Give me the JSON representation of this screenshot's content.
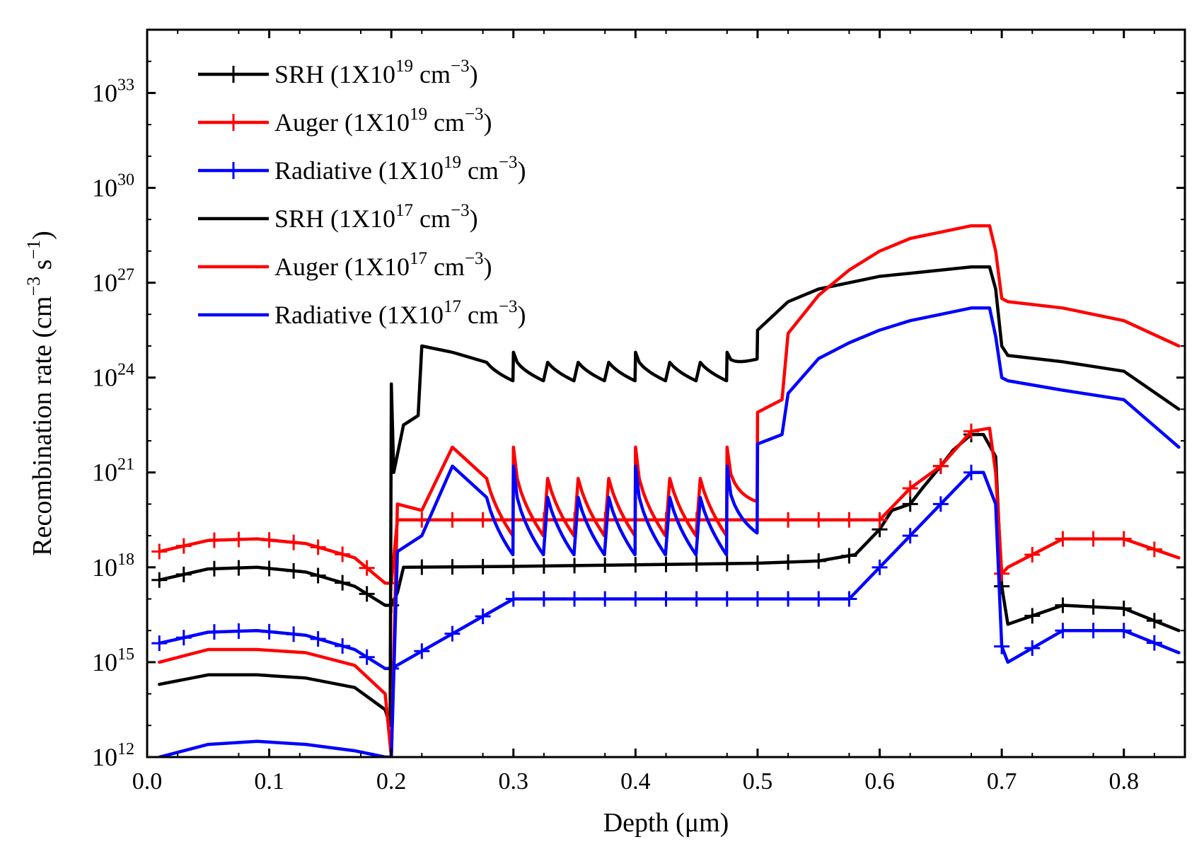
{
  "chart_data": {
    "type": "line",
    "title": "",
    "xlabel": "Depth (μm)",
    "ylabel_parts": [
      "Recombination rate (cm",
      "−3",
      " s",
      "−1",
      ")"
    ],
    "xlim": [
      0.0,
      0.85
    ],
    "ylim_log10": [
      12,
      35
    ],
    "x_ticks": [
      0.0,
      0.1,
      0.2,
      0.3,
      0.4,
      0.5,
      0.6,
      0.7,
      0.8
    ],
    "x_tick_labels": [
      "0.0",
      "0.1",
      "0.2",
      "0.3",
      "0.4",
      "0.5",
      "0.6",
      "0.7",
      "0.8"
    ],
    "y_ticks": [
      12,
      15,
      18,
      21,
      24,
      27,
      30,
      33
    ],
    "y_tick_base": "10",
    "y_tick_exps": [
      "12",
      "15",
      "18",
      "21",
      "24",
      "27",
      "30",
      "33"
    ],
    "legend_position": "top-left",
    "series": [
      {
        "name": "SRH (1X10^19 cm^-3)",
        "legend": {
          "pre": "SRH (1X10",
          "sup1": "19",
          "mid": " cm",
          "sup2": "−3",
          "post": ")"
        },
        "color": "#000000",
        "marker": "plus",
        "x": [
          0.01,
          0.05,
          0.09,
          0.13,
          0.17,
          0.195,
          0.2,
          0.205,
          0.21,
          0.3,
          0.4,
          0.5,
          0.55,
          0.58,
          0.6,
          0.61,
          0.625,
          0.635,
          0.65,
          0.66,
          0.675,
          0.685,
          0.695,
          0.7,
          0.705,
          0.75,
          0.8,
          0.845
        ],
        "log10_values": [
          17.6,
          17.95,
          18.0,
          17.85,
          17.4,
          16.8,
          16.8,
          17.2,
          18.0,
          18.03,
          18.08,
          18.13,
          18.2,
          18.4,
          19.2,
          19.8,
          20.0,
          20.5,
          21.2,
          21.7,
          22.2,
          22.2,
          21.5,
          17.4,
          16.2,
          16.8,
          16.7,
          16.0
        ],
        "marker_x": [
          0.01,
          0.03,
          0.055,
          0.075,
          0.1,
          0.12,
          0.14,
          0.16,
          0.18,
          0.2,
          0.225,
          0.25,
          0.275,
          0.3,
          0.325,
          0.35,
          0.375,
          0.4,
          0.425,
          0.45,
          0.475,
          0.5,
          0.525,
          0.55,
          0.575,
          0.6,
          0.625,
          0.65,
          0.675,
          0.7,
          0.725,
          0.75,
          0.775,
          0.8,
          0.825
        ]
      },
      {
        "name": "Auger (1X10^19 cm^-3)",
        "legend": {
          "pre": "Auger (1X10",
          "sup1": "19",
          "mid": " cm",
          "sup2": "−3",
          "post": ")"
        },
        "color": "#ff0000",
        "marker": "plus",
        "x": [
          0.01,
          0.05,
          0.09,
          0.13,
          0.17,
          0.195,
          0.2,
          0.205,
          0.3,
          0.4,
          0.5,
          0.55,
          0.575,
          0.6,
          0.625,
          0.65,
          0.675,
          0.69,
          0.695,
          0.7,
          0.705,
          0.75,
          0.8,
          0.845
        ],
        "log10_values": [
          18.5,
          18.85,
          18.9,
          18.75,
          18.3,
          17.5,
          17.5,
          19.5,
          19.5,
          19.5,
          19.5,
          19.5,
          19.5,
          19.5,
          20.5,
          21.2,
          22.3,
          22.4,
          21.0,
          17.8,
          18.0,
          18.9,
          18.9,
          18.3
        ],
        "marker_x": [
          0.01,
          0.03,
          0.055,
          0.075,
          0.1,
          0.12,
          0.14,
          0.16,
          0.18,
          0.2,
          0.225,
          0.25,
          0.275,
          0.3,
          0.325,
          0.35,
          0.375,
          0.4,
          0.425,
          0.45,
          0.475,
          0.5,
          0.525,
          0.55,
          0.575,
          0.6,
          0.625,
          0.65,
          0.675,
          0.7,
          0.725,
          0.75,
          0.775,
          0.8,
          0.825
        ]
      },
      {
        "name": "Radiative (1X10^19 cm^-3)",
        "legend": {
          "pre": "Radiative (1X10",
          "sup1": "19",
          "mid": " cm",
          "sup2": "−3",
          "post": ")"
        },
        "color": "#0000ff",
        "marker": "plus",
        "x": [
          0.01,
          0.05,
          0.09,
          0.13,
          0.17,
          0.195,
          0.2,
          0.3,
          0.4,
          0.5,
          0.575,
          0.6,
          0.625,
          0.65,
          0.675,
          0.685,
          0.695,
          0.7,
          0.705,
          0.75,
          0.8,
          0.845
        ],
        "log10_values": [
          15.6,
          15.95,
          16.0,
          15.85,
          15.4,
          14.8,
          14.8,
          17.0,
          17.0,
          17.0,
          17.0,
          18.0,
          19.0,
          20.0,
          21.0,
          21.0,
          20.0,
          15.5,
          15.0,
          16.0,
          16.0,
          15.3
        ],
        "marker_x": [
          0.01,
          0.03,
          0.055,
          0.075,
          0.1,
          0.12,
          0.14,
          0.16,
          0.18,
          0.2,
          0.225,
          0.25,
          0.275,
          0.3,
          0.325,
          0.35,
          0.375,
          0.4,
          0.425,
          0.45,
          0.475,
          0.5,
          0.525,
          0.55,
          0.575,
          0.6,
          0.625,
          0.65,
          0.675,
          0.7,
          0.725,
          0.75,
          0.775,
          0.8,
          0.825
        ]
      },
      {
        "name": "SRH (1X10^17 cm^-3)",
        "legend": {
          "pre": "SRH (1X10",
          "sup1": "17",
          "mid": " cm",
          "sup2": "−3",
          "post": ")"
        },
        "color": "#000000",
        "marker": "none",
        "x": [
          0.01,
          0.05,
          0.09,
          0.13,
          0.17,
          0.195,
          0.199,
          0.2,
          0.202,
          0.21,
          0.222,
          0.225,
          0.25,
          0.3,
          0.4,
          0.475,
          0.5,
          0.525,
          0.55,
          0.575,
          0.6,
          0.625,
          0.65,
          0.675,
          0.69,
          0.695,
          0.7,
          0.705,
          0.75,
          0.8,
          0.845
        ],
        "log10_values": [
          14.3,
          14.6,
          14.6,
          14.5,
          14.2,
          13.5,
          13.0,
          23.8,
          21.0,
          22.5,
          22.8,
          25.0,
          24.8,
          24.8,
          24.8,
          24.8,
          25.5,
          26.4,
          26.8,
          27.0,
          27.2,
          27.3,
          27.4,
          27.5,
          27.5,
          26.8,
          25.0,
          24.7,
          24.5,
          24.2,
          23.0
        ],
        "tooth_start": 0.225,
        "tooth_end": 0.5,
        "tooth_amp": 0.9
      },
      {
        "name": "Auger (1X10^17 cm^-3)",
        "legend": {
          "pre": "Auger (1X10",
          "sup1": "17",
          "mid": " cm",
          "sup2": "−3",
          "post": ")"
        },
        "color": "#ff0000",
        "marker": "none",
        "x": [
          0.01,
          0.05,
          0.09,
          0.13,
          0.17,
          0.195,
          0.2,
          0.205,
          0.225,
          0.25,
          0.3,
          0.4,
          0.475,
          0.5,
          0.52,
          0.525,
          0.55,
          0.575,
          0.6,
          0.625,
          0.65,
          0.675,
          0.69,
          0.695,
          0.7,
          0.705,
          0.75,
          0.8,
          0.845
        ],
        "log10_values": [
          15.0,
          15.4,
          15.4,
          15.3,
          14.9,
          14.0,
          12.0,
          20.0,
          19.8,
          21.8,
          21.8,
          21.8,
          21.8,
          22.9,
          23.3,
          25.4,
          26.6,
          27.4,
          28.0,
          28.4,
          28.6,
          28.8,
          28.8,
          28.0,
          26.5,
          26.4,
          26.2,
          25.8,
          25.0
        ],
        "tooth_start": 0.25,
        "tooth_end": 0.5,
        "tooth_amp": 2.8
      },
      {
        "name": "Radiative (1X10^17 cm^-3)",
        "legend": {
          "pre": "Radiative (1X10",
          "sup1": "17",
          "mid": " cm",
          "sup2": "−3",
          "post": ")"
        },
        "color": "#0000ff",
        "marker": "none",
        "x": [
          0.01,
          0.05,
          0.09,
          0.13,
          0.17,
          0.195,
          0.2,
          0.205,
          0.225,
          0.25,
          0.3,
          0.4,
          0.475,
          0.5,
          0.52,
          0.525,
          0.55,
          0.575,
          0.6,
          0.625,
          0.65,
          0.675,
          0.69,
          0.695,
          0.7,
          0.705,
          0.75,
          0.8,
          0.845
        ],
        "log10_values": [
          12.0,
          12.4,
          12.5,
          12.4,
          12.2,
          12.0,
          12.0,
          18.5,
          19.0,
          21.2,
          21.2,
          21.2,
          21.2,
          21.9,
          22.2,
          23.5,
          24.6,
          25.1,
          25.5,
          25.8,
          26.0,
          26.2,
          26.2,
          25.3,
          24.0,
          23.9,
          23.6,
          23.3,
          21.8
        ],
        "tooth_start": 0.25,
        "tooth_end": 0.5,
        "tooth_amp": 2.8
      }
    ]
  }
}
